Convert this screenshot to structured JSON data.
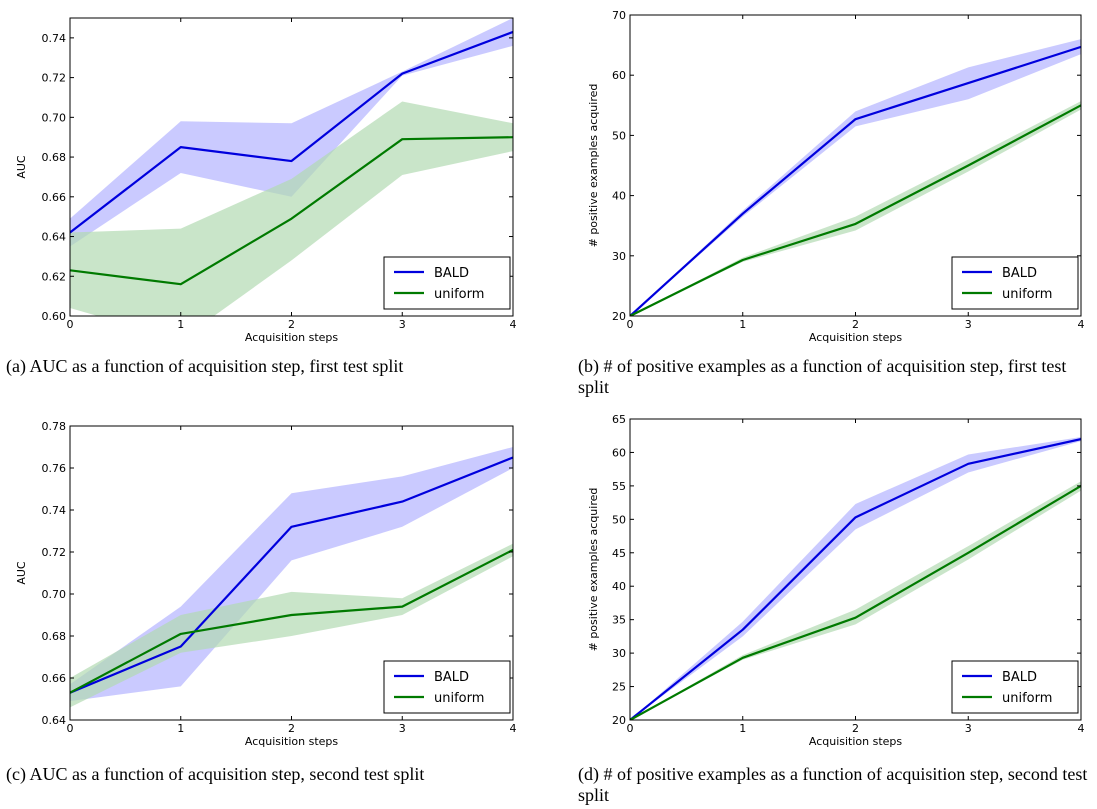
{
  "captions": [
    "(a) AUC as a function of acquisition step, first test split",
    "(b) # of positive examples as a function of acquisition step, first test split",
    "(c) AUC as a function of acquisition step, second test split",
    "(d) # of positive examples as a function of acquisition step, second test split"
  ],
  "colors": {
    "bald": "#0000dd",
    "bald_band": "#b3b3ff",
    "uniform": "#007a00",
    "uniform_band": "#b2dab2"
  },
  "chart_data": [
    {
      "type": "line",
      "title": "",
      "xlabel": "Acquisition steps",
      "ylabel": "AUC",
      "xlim": [
        0,
        4
      ],
      "ylim": [
        0.6,
        0.75
      ],
      "x": [
        0,
        1,
        2,
        3,
        4
      ],
      "xticks": [
        "0",
        "1",
        "2",
        "3",
        "4"
      ],
      "yticks": [
        "0.60",
        "0.62",
        "0.64",
        "0.66",
        "0.68",
        "0.70",
        "0.72",
        "0.74"
      ],
      "ytick_values": [
        0.6,
        0.62,
        0.64,
        0.66,
        0.68,
        0.7,
        0.72,
        0.74
      ],
      "legend": "bottom-right",
      "series": [
        {
          "name": "BALD",
          "values": [
            0.642,
            0.685,
            0.678,
            0.722,
            0.743
          ],
          "lower": [
            0.635,
            0.672,
            0.66,
            0.721,
            0.736
          ],
          "upper": [
            0.649,
            0.698,
            0.697,
            0.723,
            0.75
          ]
        },
        {
          "name": "uniform",
          "values": [
            0.623,
            0.616,
            0.649,
            0.689,
            0.69
          ],
          "lower": [
            0.604,
            0.588,
            0.628,
            0.671,
            0.683
          ],
          "upper": [
            0.642,
            0.644,
            0.669,
            0.708,
            0.697
          ]
        }
      ]
    },
    {
      "type": "line",
      "title": "",
      "xlabel": "Acquisition steps",
      "ylabel": "# positive examples acquired",
      "xlim": [
        0,
        4
      ],
      "ylim": [
        20,
        70
      ],
      "x": [
        0,
        1,
        2,
        3,
        4
      ],
      "xticks": [
        "0",
        "1",
        "2",
        "3",
        "4"
      ],
      "yticks": [
        "20",
        "30",
        "40",
        "50",
        "60",
        "70"
      ],
      "ytick_values": [
        20,
        30,
        40,
        50,
        60,
        70
      ],
      "legend": "bottom-right",
      "series": [
        {
          "name": "BALD",
          "values": [
            20,
            37,
            52.7,
            58.7,
            64.7
          ],
          "lower": [
            20,
            36.5,
            51.5,
            56,
            63.5
          ],
          "upper": [
            20,
            37.5,
            54,
            61.3,
            66
          ]
        },
        {
          "name": "uniform",
          "values": [
            20,
            29.3,
            35.3,
            45,
            55
          ],
          "lower": [
            20,
            29,
            34.2,
            44,
            54.3
          ],
          "upper": [
            20,
            29.7,
            36.5,
            46,
            55.7
          ]
        }
      ]
    },
    {
      "type": "line",
      "title": "",
      "xlabel": "Acquisition steps",
      "ylabel": "AUC",
      "xlim": [
        0,
        4
      ],
      "ylim": [
        0.64,
        0.78
      ],
      "x": [
        0,
        1,
        2,
        3,
        4
      ],
      "xticks": [
        "0",
        "1",
        "2",
        "3",
        "4"
      ],
      "yticks": [
        "0.64",
        "0.66",
        "0.68",
        "0.70",
        "0.72",
        "0.74",
        "0.76",
        "0.78"
      ],
      "ytick_values": [
        0.64,
        0.66,
        0.68,
        0.7,
        0.72,
        0.74,
        0.76,
        0.78
      ],
      "legend": "bottom-right",
      "series": [
        {
          "name": "BALD",
          "values": [
            0.653,
            0.675,
            0.732,
            0.744,
            0.765
          ],
          "lower": [
            0.649,
            0.656,
            0.716,
            0.732,
            0.76
          ],
          "upper": [
            0.657,
            0.694,
            0.748,
            0.756,
            0.77
          ]
        },
        {
          "name": "uniform",
          "values": [
            0.653,
            0.681,
            0.69,
            0.694,
            0.721
          ],
          "lower": [
            0.646,
            0.672,
            0.68,
            0.69,
            0.718
          ],
          "upper": [
            0.66,
            0.69,
            0.701,
            0.698,
            0.724
          ]
        }
      ]
    },
    {
      "type": "line",
      "title": "",
      "xlabel": "Acquisition steps",
      "ylabel": "# positive examples acquired",
      "xlim": [
        0,
        4
      ],
      "ylim": [
        20,
        65
      ],
      "x": [
        0,
        1,
        2,
        3,
        4
      ],
      "xticks": [
        "0",
        "1",
        "2",
        "3",
        "4"
      ],
      "yticks": [
        "20",
        "25",
        "30",
        "35",
        "40",
        "45",
        "50",
        "55",
        "60",
        "65"
      ],
      "ytick_values": [
        20,
        25,
        30,
        35,
        40,
        45,
        50,
        55,
        60,
        65
      ],
      "legend": "bottom-right",
      "series": [
        {
          "name": "BALD",
          "values": [
            20,
            33.5,
            50.3,
            58.3,
            62
          ],
          "lower": [
            20,
            32.5,
            48.5,
            57,
            61.7
          ],
          "upper": [
            20,
            34.7,
            52.3,
            59.7,
            62.3
          ]
        },
        {
          "name": "uniform",
          "values": [
            20,
            29.3,
            35.3,
            45,
            55
          ],
          "lower": [
            20,
            29,
            34.3,
            44,
            54.3
          ],
          "upper": [
            20,
            29.7,
            36.5,
            46,
            55.7
          ]
        }
      ]
    }
  ]
}
